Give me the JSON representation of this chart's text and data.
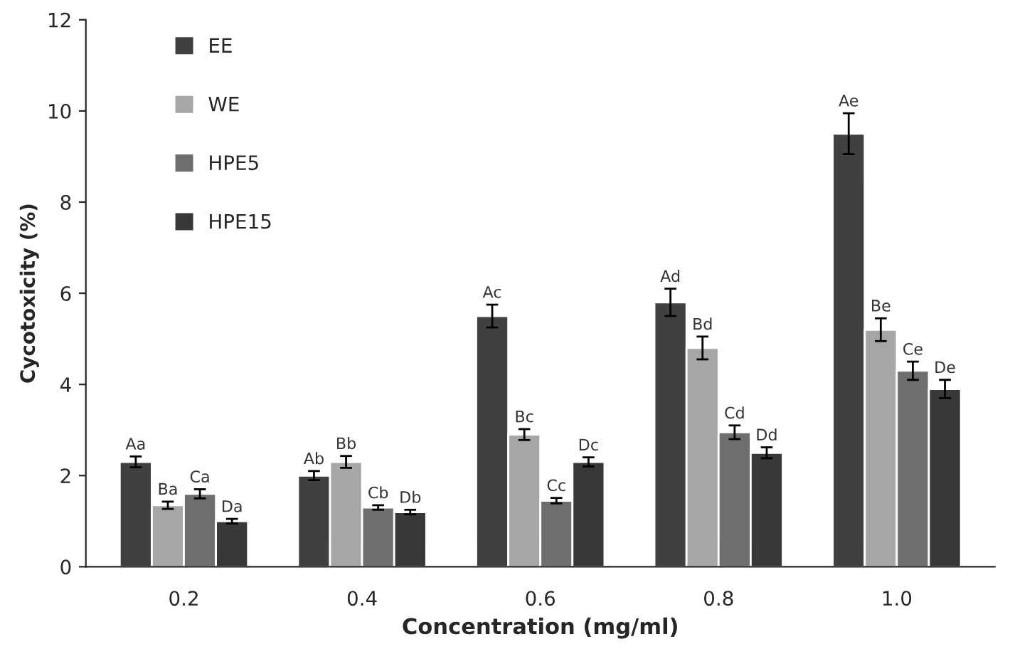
{
  "chart_data": {
    "type": "bar",
    "xlabel": "Concentration (mg/ml)",
    "ylabel": "Cycotoxicity (%)",
    "categories": [
      "0.2",
      "0.4",
      "0.6",
      "0.8",
      "1.0"
    ],
    "series": [
      {
        "name": "EE",
        "color": "#404040",
        "values": [
          2.3,
          2.0,
          5.5,
          5.8,
          9.5
        ],
        "errors": [
          0.12,
          0.1,
          0.25,
          0.3,
          0.45
        ],
        "value_labels": [
          "Aa",
          "Ab",
          "Ac",
          "Ad",
          "Ae"
        ]
      },
      {
        "name": "WE",
        "color": "#a6a6a6",
        "values": [
          1.35,
          2.3,
          2.9,
          4.8,
          5.2
        ],
        "errors": [
          0.08,
          0.13,
          0.12,
          0.25,
          0.25
        ],
        "value_labels": [
          "Ba",
          "Bb",
          "Bc",
          "Bd",
          "Be"
        ]
      },
      {
        "name": "HPE5",
        "color": "#6e6e6e",
        "values": [
          1.6,
          1.3,
          1.45,
          2.95,
          4.3
        ],
        "errors": [
          0.1,
          0.05,
          0.06,
          0.15,
          0.2
        ],
        "value_labels": [
          "Ca",
          "Cb",
          "Cc",
          "Cd",
          "Ce"
        ]
      },
      {
        "name": "HPE15",
        "color": "#383838",
        "values": [
          1.0,
          1.2,
          2.3,
          2.5,
          3.9
        ],
        "errors": [
          0.05,
          0.05,
          0.1,
          0.12,
          0.2
        ],
        "value_labels": [
          "Da",
          "Db",
          "Dc",
          "Dd",
          "De"
        ]
      }
    ],
    "ylim": [
      0,
      12
    ],
    "yticks": [
      0,
      2,
      4,
      6,
      8,
      10,
      12
    ],
    "grid": false,
    "legend": "top left"
  }
}
